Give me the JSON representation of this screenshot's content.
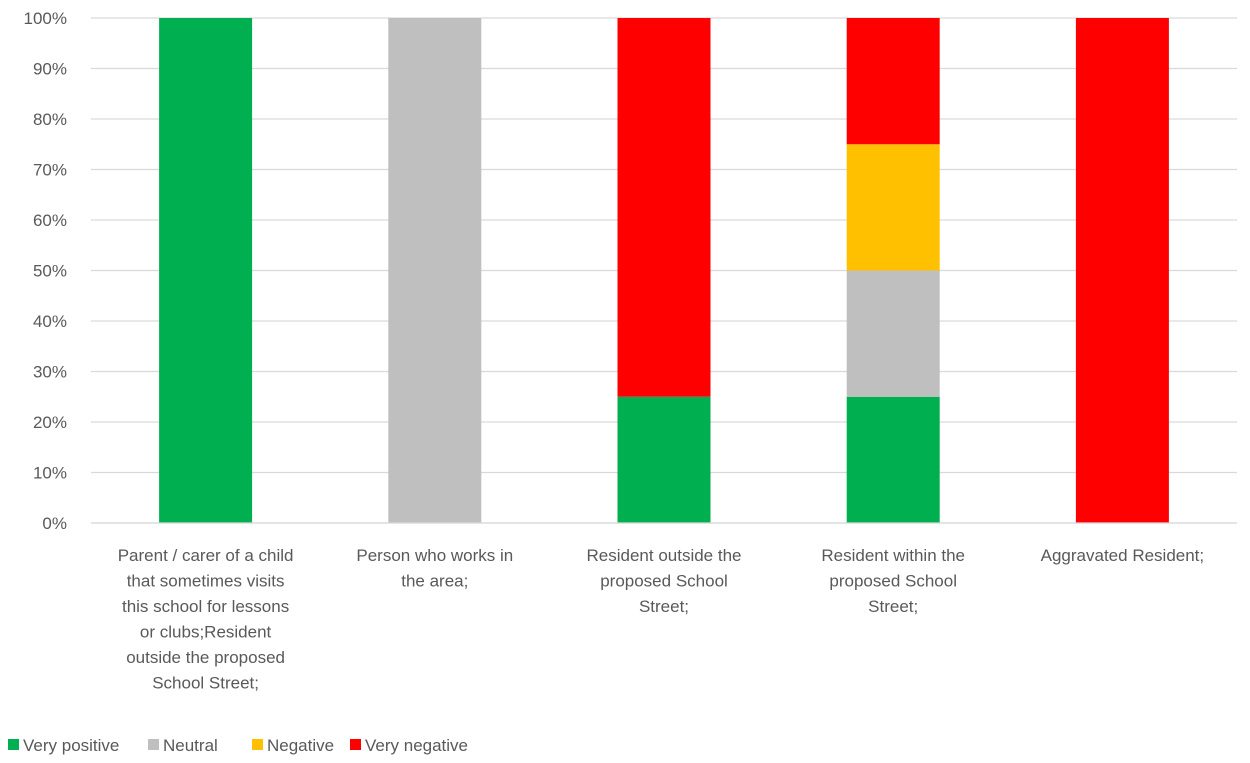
{
  "chart_data": {
    "type": "bar",
    "stacked": true,
    "percent_axis": true,
    "title": "",
    "xlabel": "",
    "ylabel": "",
    "ylim": [
      0,
      100
    ],
    "y_ticks": [
      "0%",
      "10%",
      "20%",
      "30%",
      "40%",
      "50%",
      "60%",
      "70%",
      "80%",
      "90%",
      "100%"
    ],
    "grid": true,
    "legend_position": "bottom-left",
    "categories": [
      [
        "Parent / carer of a child",
        "that sometimes visits",
        "this school for lessons",
        "or clubs;Resident",
        "outside the proposed",
        "School Street;"
      ],
      [
        "Person who works in",
        "the area;"
      ],
      [
        "Resident outside the",
        "proposed School",
        "Street;"
      ],
      [
        "Resident within the",
        "proposed School",
        "Street;"
      ],
      [
        "Aggravated Resident;"
      ]
    ],
    "series": [
      {
        "name": "Very positive",
        "color": "#00B050",
        "values": [
          100,
          0,
          25,
          25,
          0
        ]
      },
      {
        "name": "Neutral",
        "color": "#BFBFBF",
        "values": [
          0,
          100,
          0,
          25,
          0
        ]
      },
      {
        "name": "Negative",
        "color": "#FFC000",
        "values": [
          0,
          0,
          0,
          25,
          0
        ]
      },
      {
        "name": "Very negative",
        "color": "#FF0000",
        "values": [
          0,
          0,
          75,
          25,
          100
        ]
      }
    ]
  }
}
